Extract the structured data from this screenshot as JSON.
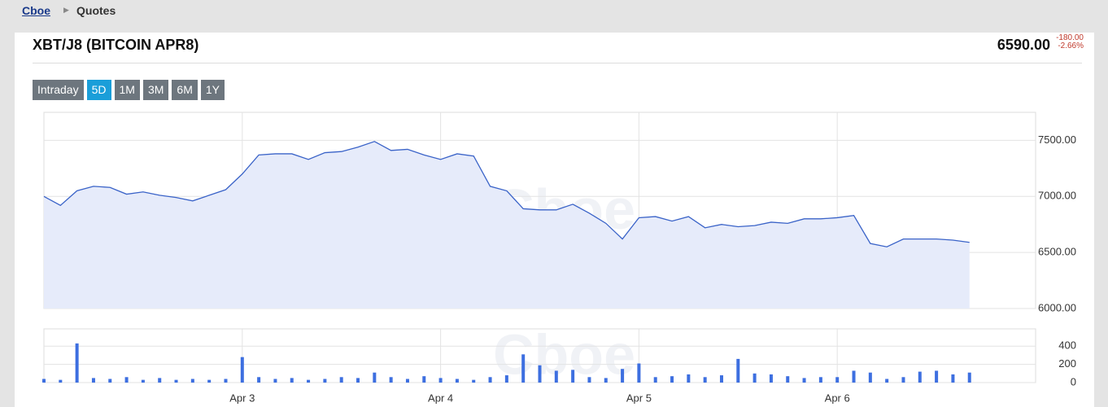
{
  "breadcrumb": {
    "home": "Cboe",
    "current": "Quotes"
  },
  "header": {
    "title": "XBT/J8 (BITCOIN APR8)",
    "price": "6590.00",
    "change": "-180.00",
    "change_percent": "-2.66%"
  },
  "ranges": [
    "Intraday",
    "5D",
    "1M",
    "3M",
    "6M",
    "1Y"
  ],
  "active_range": "5D",
  "watermark": "Cboe",
  "chart_data": [
    {
      "type": "line",
      "color": "#3a63c8",
      "area_color": "#e6ebfa",
      "values": [
        7000,
        6920,
        7050,
        7090,
        7080,
        7020,
        7040,
        7010,
        6990,
        6960,
        7010,
        7060,
        7200,
        7370,
        7380,
        7380,
        7330,
        7390,
        7400,
        7440,
        7490,
        7410,
        7420,
        7370,
        7330,
        7380,
        7360,
        7090,
        7050,
        6890,
        6880,
        6880,
        6930,
        6850,
        6760,
        6620,
        6810,
        6820,
        6780,
        6820,
        6720,
        6750,
        6730,
        6740,
        6770,
        6760,
        6800,
        6800,
        6810,
        6830,
        6580,
        6550,
        6620,
        6620,
        6620,
        6610,
        6590,
        null,
        null,
        null,
        null
      ],
      "ylim": [
        6000,
        7750
      ],
      "yticks": [
        {
          "value": 6000,
          "label": "6000.00"
        },
        {
          "value": 6500,
          "label": "6500.00"
        },
        {
          "value": 7000,
          "label": "7000.00"
        },
        {
          "value": 7500,
          "label": "7500.00"
        }
      ],
      "grid": true
    },
    {
      "type": "bar",
      "color": "#3d6fe0",
      "categories": [
        null,
        null,
        null,
        null,
        null,
        null,
        null,
        null,
        null,
        null,
        null,
        null,
        "Apr 3",
        null,
        null,
        null,
        null,
        null,
        null,
        null,
        null,
        null,
        null,
        null,
        "Apr 4",
        null,
        null,
        null,
        null,
        null,
        null,
        null,
        null,
        null,
        null,
        null,
        "Apr 5",
        null,
        null,
        null,
        null,
        null,
        null,
        null,
        null,
        null,
        null,
        null,
        "Apr 6",
        null,
        null,
        null,
        null,
        null,
        null,
        null,
        null,
        null,
        null,
        null,
        null
      ],
      "values": [
        40,
        30,
        430,
        50,
        40,
        60,
        30,
        50,
        30,
        40,
        30,
        40,
        280,
        60,
        40,
        50,
        30,
        40,
        60,
        50,
        110,
        60,
        40,
        70,
        50,
        40,
        30,
        60,
        80,
        310,
        190,
        130,
        140,
        60,
        50,
        150,
        210,
        60,
        70,
        90,
        60,
        80,
        260,
        100,
        90,
        70,
        50,
        60,
        60,
        130,
        110,
        40,
        60,
        120,
        130,
        90,
        110,
        null,
        null,
        null,
        null
      ],
      "ylim": [
        0,
        590
      ],
      "yticks": [
        0,
        200,
        400
      ],
      "grid": true
    }
  ]
}
